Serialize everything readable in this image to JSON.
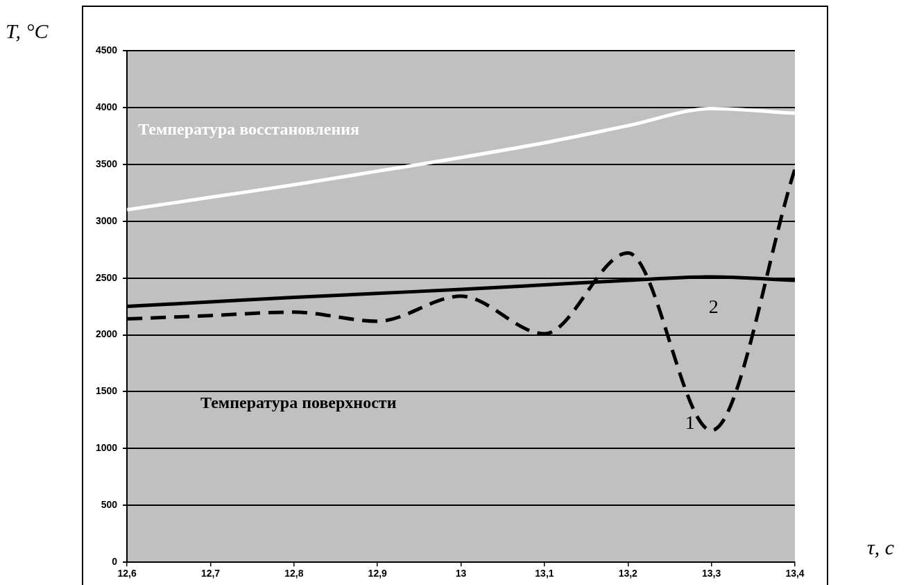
{
  "chart_data": {
    "type": "line",
    "xlabel": "τ, с",
    "ylabel": "T, °C",
    "x": [
      12.6,
      12.7,
      12.8,
      12.9,
      13.0,
      13.1,
      13.2,
      13.3,
      13.4
    ],
    "series": [
      {
        "name": "1",
        "color": "#000000",
        "line_style": "dashed",
        "values": [
          2140,
          2170,
          2200,
          2120,
          2340,
          2010,
          2720,
          1160,
          3460
        ]
      },
      {
        "name": "2",
        "color": "#000000",
        "line_style": "solid",
        "values": [
          2250,
          2290,
          2330,
          2365,
          2400,
          2440,
          2480,
          2510,
          2480
        ]
      },
      {
        "name": "Температура восстановления",
        "color": "#ffffff",
        "line_style": "solid",
        "values": [
          3100,
          3210,
          3320,
          3440,
          3560,
          3690,
          3840,
          3990,
          3950
        ]
      }
    ],
    "xlim": [
      12.6,
      13.4
    ],
    "xticks": [
      {
        "value": 12.6,
        "label": "12,6"
      },
      {
        "value": 12.7,
        "label": "12,7"
      },
      {
        "value": 12.8,
        "label": "12,8"
      },
      {
        "value": 12.9,
        "label": "12,9"
      },
      13,
      {
        "value": 13.1,
        "label": "13,1"
      },
      {
        "value": 13.2,
        "label": "13,2"
      },
      {
        "value": 13.3,
        "label": "13,3"
      },
      {
        "value": 13.4,
        "label": "13,4"
      }
    ],
    "ylim": [
      0,
      4500
    ],
    "yticks": [
      0,
      500,
      1000,
      1500,
      2000,
      2500,
      3000,
      3500,
      4000,
      4500
    ],
    "grid": "y",
    "legend": false,
    "marker": "none",
    "annotations": [
      "Температура поверхности"
    ]
  }
}
